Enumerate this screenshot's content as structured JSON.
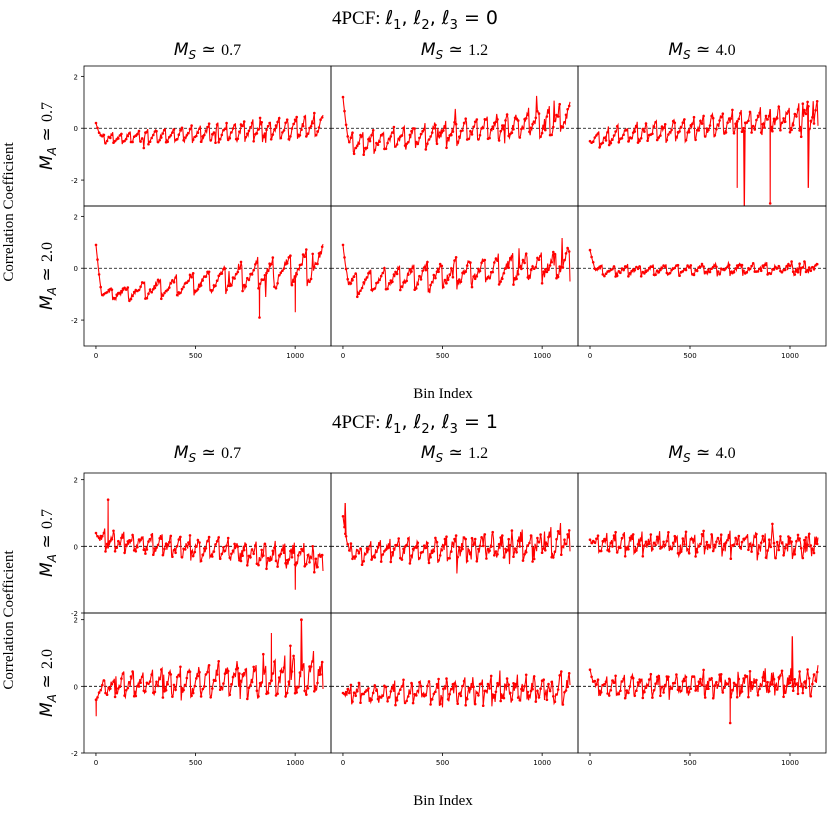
{
  "colors": {
    "series": "#ff0000",
    "axes": "#000000",
    "zero_line": "#000000"
  },
  "figure": {
    "ylabel": "Correlation Coefficient",
    "xlabel": "Bin Index"
  },
  "chart_data": [
    {
      "type": "line",
      "title": "4PCF: ℓ₁, ℓ₂, ℓ₃ = 0",
      "col_labels": [
        "M_S ≃ 0.7",
        "M_S ≃ 1.2",
        "M_S ≃ 4.0"
      ],
      "col_values": [
        "0.7",
        "1.2",
        "4.0"
      ],
      "row_labels": [
        "M_A ≃ 0.7",
        "M_A ≃ 2.0"
      ],
      "row_values": [
        "0.7",
        "2.0"
      ],
      "xlim": [
        -60,
        1180
      ],
      "xticks": [
        0,
        500,
        1000
      ],
      "xlabel": "Bin Index",
      "ylabel": "Correlation Coefficient",
      "ylim": [
        -3.0,
        2.4
      ],
      "yticks": [
        -2,
        0,
        2
      ],
      "grid": false,
      "zero_line": "dashed",
      "panels": [
        {
          "row": 0,
          "col": 0,
          "seed": 11,
          "start": 0.2,
          "base": [
            -0.4,
            0.0
          ],
          "osc": [
            0.4,
            1.0
          ],
          "teeth": 26,
          "noise": 0.06,
          "spikes": []
        },
        {
          "row": 0,
          "col": 1,
          "seed": 23,
          "start": 1.2,
          "base": [
            -0.6,
            0.3
          ],
          "osc": [
            0.8,
            1.1
          ],
          "teeth": 22,
          "noise": 0.1,
          "spikes": []
        },
        {
          "row": 0,
          "col": 2,
          "seed": 37,
          "start": -0.5,
          "base": [
            -0.4,
            0.5
          ],
          "osc": [
            0.7,
            1.0
          ],
          "teeth": 24,
          "noise": 0.1,
          "spikes": [
            [
              770,
              -3.0
            ],
            [
              735,
              -2.3
            ],
            [
              900,
              -2.9
            ],
            [
              1090,
              -2.3
            ]
          ]
        },
        {
          "row": 1,
          "col": 0,
          "seed": 41,
          "start": 0.9,
          "base": [
            -1.1,
            0.1
          ],
          "osc": [
            0.4,
            1.5
          ],
          "teeth": 14,
          "noise": 0.08,
          "spikes": [
            [
              1000,
              -1.7
            ],
            [
              820,
              -1.9
            ]
          ]
        },
        {
          "row": 1,
          "col": 1,
          "seed": 53,
          "start": 0.9,
          "base": [
            -0.6,
            0.2
          ],
          "osc": [
            0.9,
            1.2
          ],
          "teeth": 16,
          "noise": 0.1,
          "spikes": []
        },
        {
          "row": 1,
          "col": 2,
          "seed": 67,
          "start": 0.7,
          "base": [
            -0.1,
            0.0
          ],
          "osc": [
            0.4,
            0.4
          ],
          "teeth": 18,
          "noise": 0.06,
          "spikes": []
        }
      ]
    },
    {
      "type": "line",
      "title": "4PCF: ℓ₁, ℓ₂, ℓ₃ = 1",
      "col_labels": [
        "M_S ≃ 0.7",
        "M_S ≃ 1.2",
        "M_S ≃ 4.0"
      ],
      "col_values": [
        "0.7",
        "1.2",
        "4.0"
      ],
      "row_labels": [
        "M_A ≃ 0.7",
        "M_A ≃ 2.0"
      ],
      "row_values": [
        "0.7",
        "2.0"
      ],
      "xlim": [
        -60,
        1180
      ],
      "xticks": [
        0,
        500,
        1000
      ],
      "xlabel": "Bin Index",
      "ylabel": "Correlation Coefficient",
      "ylim": [
        -2.0,
        2.2
      ],
      "yticks": [
        -2,
        0,
        2
      ],
      "grid": false,
      "zero_line": "dashed",
      "panels": [
        {
          "row": 0,
          "col": 0,
          "seed": 71,
          "start": 0.4,
          "base": [
            0.2,
            -0.4
          ],
          "osc": [
            0.6,
            0.6
          ],
          "teeth": 24,
          "noise": 0.1,
          "spikes": [
            [
              60,
              1.4
            ],
            [
              1000,
              -1.3
            ]
          ]
        },
        {
          "row": 0,
          "col": 1,
          "seed": 83,
          "start": 0.9,
          "base": [
            -0.2,
            0.1
          ],
          "osc": [
            0.5,
            0.8
          ],
          "teeth": 24,
          "noise": 0.12,
          "spikes": [
            [
              10,
              1.3
            ]
          ]
        },
        {
          "row": 0,
          "col": 2,
          "seed": 97,
          "start": 0.2,
          "base": [
            0.1,
            0.0
          ],
          "osc": [
            0.5,
            0.6
          ],
          "teeth": 26,
          "noise": 0.12,
          "spikes": []
        },
        {
          "row": 1,
          "col": 0,
          "seed": 101,
          "start": -0.4,
          "base": [
            0.0,
            0.3
          ],
          "osc": [
            0.6,
            1.2
          ],
          "teeth": 24,
          "noise": 0.12,
          "spikes": [
            [
              1030,
              2.0
            ],
            [
              880,
              1.6
            ],
            [
              0,
              -0.9
            ]
          ]
        },
        {
          "row": 1,
          "col": 1,
          "seed": 113,
          "start": -0.2,
          "base": [
            -0.2,
            -0.1
          ],
          "osc": [
            0.5,
            0.7
          ],
          "teeth": 26,
          "noise": 0.12,
          "spikes": []
        },
        {
          "row": 1,
          "col": 2,
          "seed": 127,
          "start": 0.5,
          "base": [
            0.0,
            0.1
          ],
          "osc": [
            0.6,
            0.6
          ],
          "teeth": 26,
          "noise": 0.12,
          "spikes": [
            [
              1010,
              1.5
            ],
            [
              700,
              -1.1
            ]
          ]
        }
      ]
    }
  ]
}
